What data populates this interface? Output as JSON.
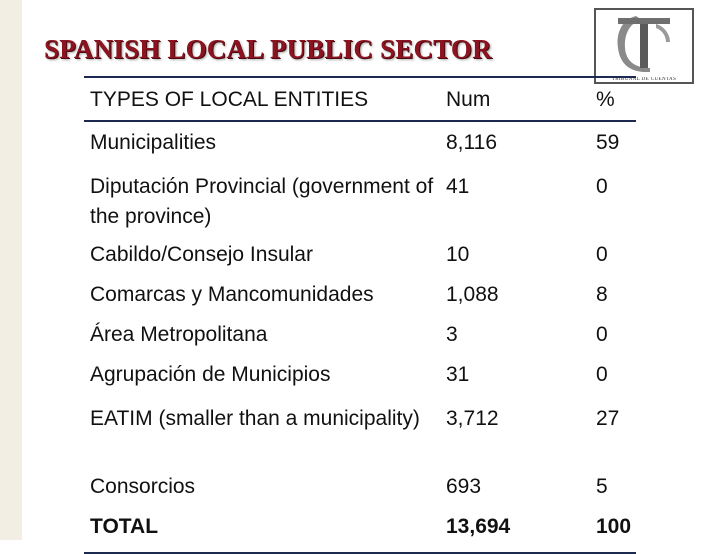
{
  "title": "SPANISH LOCAL PUBLIC SECTOR",
  "logo": {
    "monogram": "TC",
    "caption": "TRIBUNAL DE CUENTAS"
  },
  "table": {
    "headers": [
      "TYPES OF LOCAL ENTITIES",
      "Num",
      "%"
    ],
    "rows": [
      {
        "type": "Municipalities",
        "num": "8,116",
        "pct": "59"
      },
      {
        "type": "Diputación Provincial (government of the province)",
        "num": "41",
        "pct": "0"
      },
      {
        "type": "Cabildo/Consejo Insular",
        "num": "10",
        "pct": "0"
      },
      {
        "type": "Comarcas y Mancomunidades",
        "num": "1,088",
        "pct": "8"
      },
      {
        "type": "Área Metropolitana",
        "num": "3",
        "pct": "0"
      },
      {
        "type": "Agrupación de Municipios",
        "num": "31",
        "pct": "0"
      },
      {
        "type": "EATIM (smaller than a municipality)",
        "num": "3,712",
        "pct": "27"
      },
      {
        "type": "Consorcios",
        "num": "693",
        "pct": "5"
      }
    ],
    "total": {
      "type": "TOTAL",
      "num": "13,694",
      "pct": "100"
    }
  },
  "colors": {
    "title": "#8b1420",
    "rule": "#1b2a4e",
    "stripe": "#f3eee4"
  }
}
